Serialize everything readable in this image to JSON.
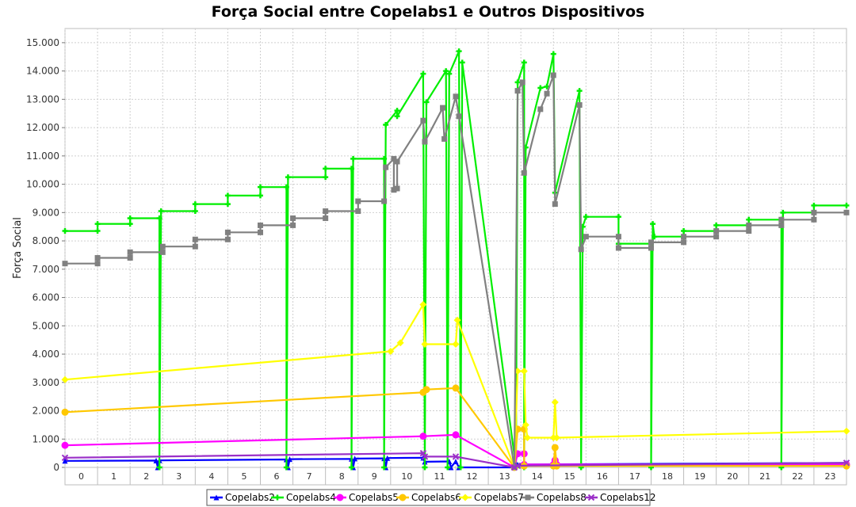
{
  "chart_data": {
    "type": "line",
    "title": "Força Social entre Copelabs1 e Outros Dispositivos",
    "ylabel": "Força Social",
    "xlabel": "",
    "ylim": [
      0,
      15500
    ],
    "xlim": [
      -0.5,
      23.5
    ],
    "categories": [
      "0",
      "1",
      "2",
      "3",
      "4",
      "5",
      "6",
      "7",
      "8",
      "9",
      "10",
      "11",
      "12",
      "13",
      "14",
      "15",
      "16",
      "17",
      "18",
      "19",
      "20",
      "21",
      "22",
      "23"
    ],
    "ytick_labels": [
      "0",
      "1.000",
      "2.000",
      "3.000",
      "4.000",
      "5.000",
      "6.000",
      "7.000",
      "8.000",
      "9.000",
      "10.000",
      "11.000",
      "12.000",
      "13.000",
      "14.000",
      "15.000"
    ],
    "grid": true,
    "legend_position": "bottom",
    "series": [
      {
        "name": "Copelabs2",
        "color": "#0000ff",
        "marker": "triangle",
        "points": [
          [
            -0.5,
            230
          ],
          [
            2.3,
            240
          ],
          [
            2.35,
            0
          ],
          [
            2.4,
            250
          ],
          [
            6.3,
            280
          ],
          [
            6.35,
            0
          ],
          [
            6.4,
            290
          ],
          [
            8.3,
            300
          ],
          [
            8.35,
            0
          ],
          [
            8.4,
            310
          ],
          [
            9.3,
            320
          ],
          [
            9.35,
            0
          ],
          [
            9.4,
            330
          ],
          [
            10.5,
            340
          ],
          [
            10.55,
            200
          ],
          [
            11.3,
            210
          ],
          [
            11.35,
            0
          ],
          [
            11.5,
            210
          ],
          [
            11.6,
            0
          ],
          [
            13.3,
            0
          ],
          [
            13.4,
            100
          ],
          [
            23.5,
            160
          ]
        ]
      },
      {
        "name": "Copelabs4",
        "color": "#00ee00",
        "marker": "plus",
        "points": [
          [
            -0.5,
            8350
          ],
          [
            0.5,
            8350
          ],
          [
            0.5,
            8600
          ],
          [
            1.5,
            8600
          ],
          [
            1.5,
            8800
          ],
          [
            2.4,
            8800
          ],
          [
            2.4,
            0
          ],
          [
            2.45,
            9050
          ],
          [
            3.5,
            9050
          ],
          [
            3.5,
            9300
          ],
          [
            4.5,
            9300
          ],
          [
            4.5,
            9600
          ],
          [
            5.5,
            9600
          ],
          [
            5.5,
            9900
          ],
          [
            6.3,
            9900
          ],
          [
            6.3,
            0
          ],
          [
            6.35,
            10250
          ],
          [
            7.5,
            10250
          ],
          [
            7.5,
            10550
          ],
          [
            8.3,
            10550
          ],
          [
            8.3,
            0
          ],
          [
            8.35,
            10900
          ],
          [
            9.3,
            10900
          ],
          [
            9.3,
            0
          ],
          [
            9.35,
            12100
          ],
          [
            9.7,
            12600
          ],
          [
            9.7,
            12400
          ],
          [
            10.5,
            13900
          ],
          [
            10.55,
            0
          ],
          [
            10.6,
            12900
          ],
          [
            11.2,
            14000
          ],
          [
            11.25,
            0
          ],
          [
            11.3,
            13900
          ],
          [
            11.6,
            14700
          ],
          [
            11.65,
            0
          ],
          [
            11.7,
            14300
          ],
          [
            13.35,
            0
          ],
          [
            13.4,
            13600
          ],
          [
            13.6,
            14300
          ],
          [
            13.6,
            0
          ],
          [
            13.65,
            11300
          ],
          [
            14.1,
            13400
          ],
          [
            14.3,
            13450
          ],
          [
            14.5,
            14600
          ],
          [
            14.55,
            9700
          ],
          [
            15.3,
            13300
          ],
          [
            15.35,
            0
          ],
          [
            15.4,
            8500
          ],
          [
            15.5,
            8850
          ],
          [
            16.5,
            8850
          ],
          [
            16.5,
            7900
          ],
          [
            17.5,
            7900
          ],
          [
            17.5,
            0
          ],
          [
            17.55,
            8600
          ],
          [
            17.6,
            8150
          ],
          [
            18.5,
            8150
          ],
          [
            18.5,
            8350
          ],
          [
            19.5,
            8350
          ],
          [
            19.5,
            8550
          ],
          [
            20.5,
            8550
          ],
          [
            20.5,
            8750
          ],
          [
            21.5,
            8750
          ],
          [
            21.5,
            0
          ],
          [
            21.55,
            9000
          ],
          [
            22.5,
            9000
          ],
          [
            22.5,
            9250
          ],
          [
            23.5,
            9250
          ]
        ]
      },
      {
        "name": "Copelabs5",
        "color": "#ff00ff",
        "marker": "circle",
        "points": [
          [
            -0.5,
            780
          ],
          [
            10.5,
            1100
          ],
          [
            11.5,
            1150
          ],
          [
            13.3,
            0
          ],
          [
            13.4,
            480
          ],
          [
            13.6,
            480
          ],
          [
            13.6,
            100
          ],
          [
            14.5,
            100
          ],
          [
            14.55,
            250
          ],
          [
            14.6,
            100
          ],
          [
            23.5,
            100
          ]
        ]
      },
      {
        "name": "Copelabs6",
        "color": "#ffc800",
        "marker": "circle",
        "points": [
          [
            -0.5,
            1950
          ],
          [
            10.5,
            2650
          ],
          [
            10.6,
            2750
          ],
          [
            11.5,
            2800
          ],
          [
            13.3,
            0
          ],
          [
            13.4,
            1350
          ],
          [
            13.6,
            1350
          ],
          [
            13.6,
            50
          ],
          [
            14.5,
            50
          ],
          [
            14.55,
            700
          ],
          [
            14.6,
            50
          ],
          [
            23.5,
            50
          ]
        ]
      },
      {
        "name": "Copelabs7",
        "color": "#ffff00",
        "marker": "diamond",
        "points": [
          [
            -0.5,
            3100
          ],
          [
            9.5,
            4100
          ],
          [
            9.8,
            4400
          ],
          [
            10.5,
            5750
          ],
          [
            10.55,
            4350
          ],
          [
            11.5,
            4350
          ],
          [
            11.55,
            5200
          ],
          [
            13.3,
            0
          ],
          [
            13.4,
            3400
          ],
          [
            13.6,
            3400
          ],
          [
            13.65,
            1500
          ],
          [
            13.7,
            1050
          ],
          [
            14.5,
            1050
          ],
          [
            14.55,
            2300
          ],
          [
            14.6,
            1050
          ],
          [
            23.5,
            1280
          ]
        ]
      },
      {
        "name": "Copelabs8",
        "color": "#808080",
        "marker": "square",
        "points": [
          [
            -0.5,
            7200
          ],
          [
            0.5,
            7200
          ],
          [
            0.5,
            7400
          ],
          [
            1.5,
            7400
          ],
          [
            1.5,
            7600
          ],
          [
            2.5,
            7600
          ],
          [
            2.5,
            7800
          ],
          [
            3.5,
            7800
          ],
          [
            3.5,
            8050
          ],
          [
            4.5,
            8050
          ],
          [
            4.5,
            8300
          ],
          [
            5.5,
            8300
          ],
          [
            5.5,
            8550
          ],
          [
            6.5,
            8550
          ],
          [
            6.5,
            8800
          ],
          [
            7.5,
            8800
          ],
          [
            7.5,
            9050
          ],
          [
            8.5,
            9050
          ],
          [
            8.5,
            9400
          ],
          [
            9.3,
            9400
          ],
          [
            9.35,
            10600
          ],
          [
            9.6,
            10900
          ],
          [
            9.6,
            9800
          ],
          [
            9.7,
            9850
          ],
          [
            9.7,
            10800
          ],
          [
            10.5,
            12250
          ],
          [
            10.55,
            11500
          ],
          [
            11.1,
            12700
          ],
          [
            11.15,
            11600
          ],
          [
            11.5,
            13100
          ],
          [
            11.6,
            12400
          ],
          [
            13.3,
            0
          ],
          [
            13.4,
            13300
          ],
          [
            13.55,
            13600
          ],
          [
            13.6,
            10400
          ],
          [
            14.1,
            12650
          ],
          [
            14.3,
            13200
          ],
          [
            14.5,
            13850
          ],
          [
            14.55,
            9300
          ],
          [
            15.3,
            12800
          ],
          [
            15.35,
            7700
          ],
          [
            15.5,
            8150
          ],
          [
            16.5,
            8150
          ],
          [
            16.5,
            7750
          ],
          [
            17.5,
            7750
          ],
          [
            17.5,
            7950
          ],
          [
            18.5,
            7950
          ],
          [
            18.5,
            8150
          ],
          [
            19.5,
            8150
          ],
          [
            19.5,
            8350
          ],
          [
            20.5,
            8350
          ],
          [
            20.5,
            8550
          ],
          [
            21.5,
            8550
          ],
          [
            21.5,
            8750
          ],
          [
            22.5,
            8750
          ],
          [
            22.5,
            9000
          ],
          [
            23.5,
            9000
          ]
        ]
      },
      {
        "name": "Copelabs12",
        "color": "#9b30c8",
        "marker": "x",
        "points": [
          [
            -0.5,
            340
          ],
          [
            10.5,
            500
          ],
          [
            10.55,
            380
          ],
          [
            11.5,
            380
          ],
          [
            13.3,
            0
          ],
          [
            13.4,
            60
          ],
          [
            23.5,
            160
          ]
        ]
      }
    ]
  }
}
